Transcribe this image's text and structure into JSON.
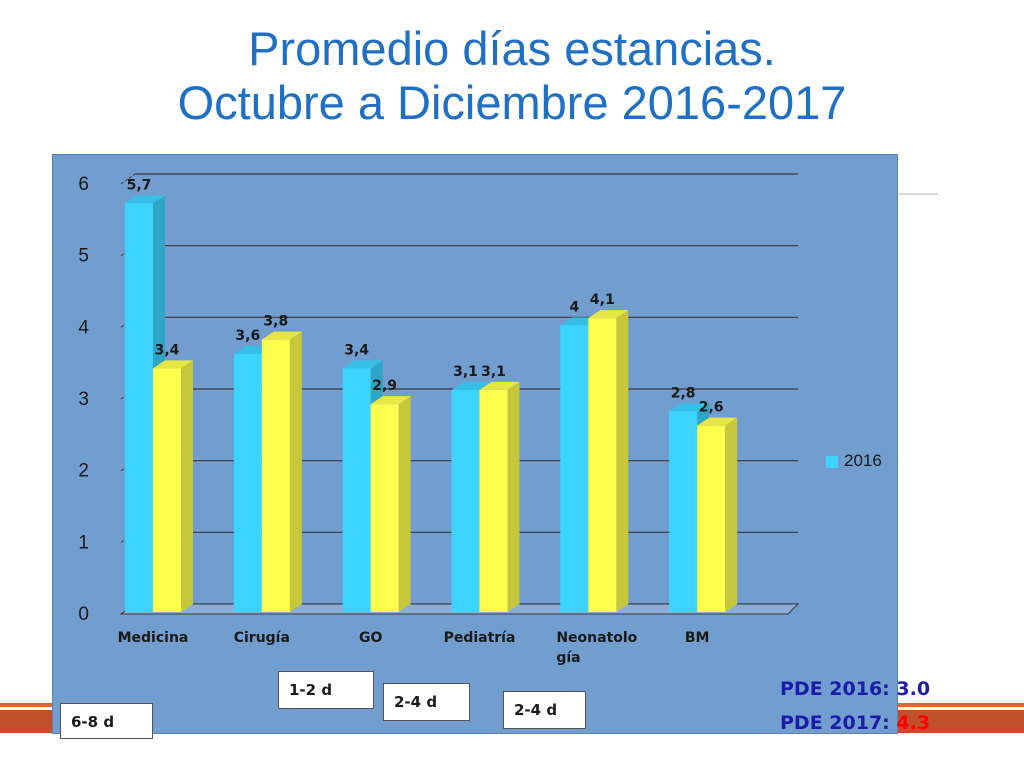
{
  "slide": {
    "title_line1": "Promedio días estancias.",
    "title_line2": "Octubre a Diciembre 2016-2017"
  },
  "chart_data": {
    "type": "bar",
    "categories": [
      "Medicina",
      "Cirugía",
      "GO",
      "Pediatría",
      "Neonatología",
      "BM"
    ],
    "series": [
      {
        "name": "2016",
        "values": [
          5.7,
          3.6,
          3.4,
          3.1,
          4.0,
          2.8
        ],
        "labels": [
          "5,7",
          "3,6",
          "3,4",
          "3,1",
          "4",
          "2,8"
        ],
        "color": "#3cd4ff"
      },
      {
        "values": [
          3.4,
          3.8,
          2.9,
          3.1,
          4.1,
          2.6
        ],
        "labels": [
          "3,4",
          "3,8",
          "2,9",
          "3,1",
          "4,1",
          "2,6"
        ],
        "color": "#ffff4d"
      }
    ],
    "ylim": [
      0,
      6
    ],
    "yticks": [
      "0",
      "1",
      "2",
      "3",
      "4",
      "5",
      "6"
    ],
    "grid": true,
    "legend_position": "right"
  },
  "ranges": [
    "6-8 d",
    "1-2 d",
    "2-4 d",
    "2-4 d"
  ],
  "pde": {
    "line1_label": "PDE 2016:",
    "line1_value": "3.0",
    "line2_label": "PDE 2017:",
    "line2_value": "4.3",
    "value1_color": "#1c1ca8",
    "value2_color": "#ff0000"
  },
  "legend": {
    "label": "2016"
  }
}
